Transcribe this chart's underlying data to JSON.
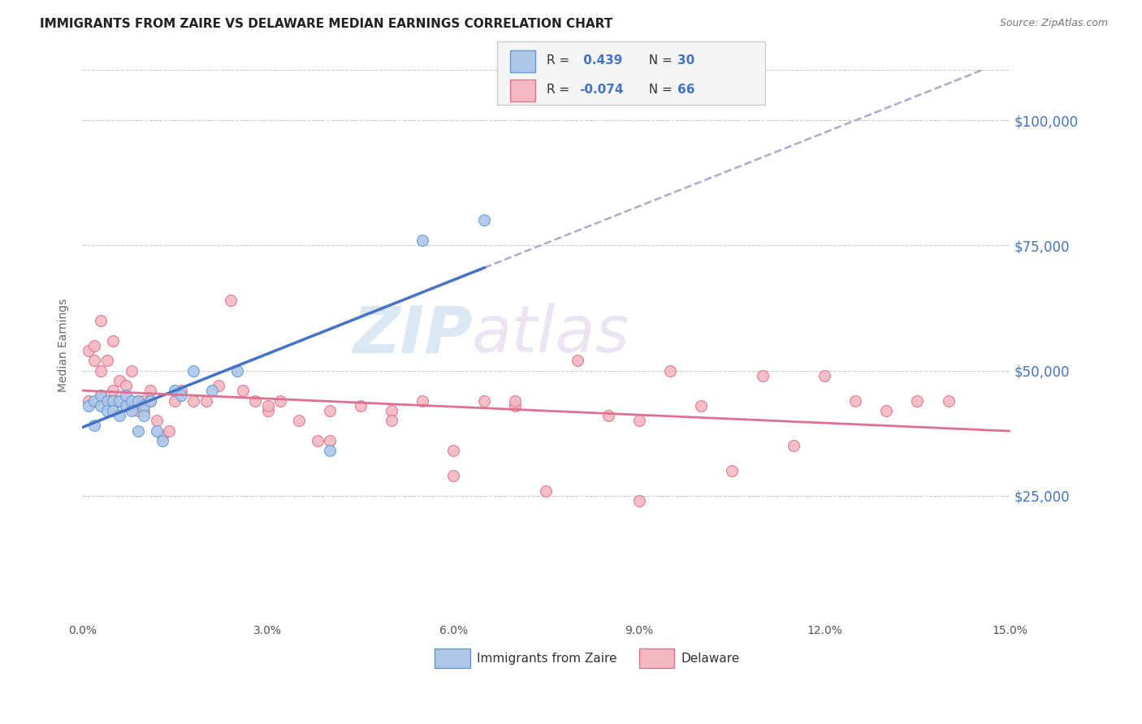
{
  "title": "IMMIGRANTS FROM ZAIRE VS DELAWARE MEDIAN EARNINGS CORRELATION CHART",
  "source": "Source: ZipAtlas.com",
  "ylabel": "Median Earnings",
  "x_min": 0.0,
  "x_max": 0.15,
  "y_min": 0,
  "y_max": 110000,
  "y_ticks": [
    25000,
    50000,
    75000,
    100000
  ],
  "y_tick_labels": [
    "$25,000",
    "$50,000",
    "$75,000",
    "$100,000"
  ],
  "blue_color": "#aec6e8",
  "blue_edge_color": "#5b9bd5",
  "pink_color": "#f4b8c1",
  "pink_edge_color": "#e07090",
  "blue_line_color": "#4472c4",
  "pink_line_color": "#e07090",
  "dashed_line_color": "#aaaacc",
  "watermark_zip": "ZIP",
  "watermark_atlas": "atlas",
  "blue_scatter_x": [
    0.001,
    0.002,
    0.002,
    0.003,
    0.003,
    0.004,
    0.004,
    0.005,
    0.005,
    0.006,
    0.006,
    0.007,
    0.007,
    0.008,
    0.008,
    0.009,
    0.009,
    0.01,
    0.01,
    0.011,
    0.012,
    0.013,
    0.015,
    0.016,
    0.018,
    0.021,
    0.025,
    0.04,
    0.055,
    0.065
  ],
  "blue_scatter_y": [
    43000,
    44000,
    39000,
    43000,
    45000,
    44000,
    42000,
    44000,
    42000,
    44000,
    41000,
    43000,
    45000,
    44000,
    42000,
    44000,
    38000,
    43000,
    41000,
    44000,
    38000,
    36000,
    46000,
    45000,
    50000,
    46000,
    50000,
    34000,
    76000,
    80000
  ],
  "pink_scatter_x": [
    0.001,
    0.001,
    0.002,
    0.002,
    0.003,
    0.003,
    0.003,
    0.004,
    0.004,
    0.005,
    0.005,
    0.005,
    0.006,
    0.006,
    0.007,
    0.007,
    0.008,
    0.008,
    0.009,
    0.009,
    0.01,
    0.01,
    0.011,
    0.011,
    0.012,
    0.013,
    0.014,
    0.015,
    0.016,
    0.018,
    0.02,
    0.022,
    0.024,
    0.026,
    0.028,
    0.03,
    0.032,
    0.035,
    0.038,
    0.04,
    0.045,
    0.05,
    0.055,
    0.06,
    0.065,
    0.07,
    0.075,
    0.08,
    0.085,
    0.09,
    0.095,
    0.1,
    0.105,
    0.11,
    0.115,
    0.12,
    0.125,
    0.13,
    0.135,
    0.14,
    0.09,
    0.07,
    0.06,
    0.05,
    0.04,
    0.03
  ],
  "pink_scatter_y": [
    44000,
    54000,
    55000,
    52000,
    50000,
    45000,
    60000,
    44000,
    52000,
    43000,
    56000,
    46000,
    44000,
    48000,
    43000,
    47000,
    43000,
    50000,
    44000,
    42000,
    44000,
    42000,
    44000,
    46000,
    40000,
    37000,
    38000,
    44000,
    46000,
    44000,
    44000,
    47000,
    64000,
    46000,
    44000,
    42000,
    44000,
    40000,
    36000,
    42000,
    43000,
    42000,
    44000,
    34000,
    44000,
    43000,
    26000,
    52000,
    41000,
    40000,
    50000,
    43000,
    30000,
    49000,
    35000,
    49000,
    44000,
    42000,
    44000,
    44000,
    24000,
    44000,
    29000,
    40000,
    36000,
    43000
  ],
  "blue_line_x_solid_end": 0.065,
  "blue_line_x_dash_start": 0.065,
  "legend_box_color": "#f5f5f5",
  "legend_border_color": "#cccccc"
}
